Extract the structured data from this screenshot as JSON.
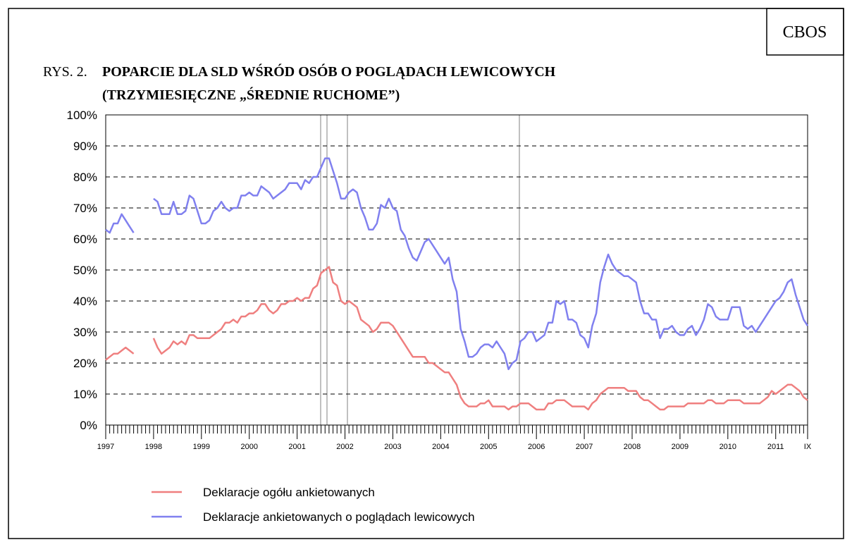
{
  "source": "CBOS",
  "chart_data": {
    "type": "line",
    "title_prefix": "RYS. 2.",
    "title": [
      "POPARCIE DLA SLD WŚRÓD OSÓB O POGLĄDACH LEWICOWYCH",
      "(TRZYMIESIĘCZNE „ŚREDNIE RUCHOME”)"
    ],
    "categories": [
      "1997",
      null,
      null,
      null,
      null,
      null,
      null,
      null,
      null,
      null,
      null,
      null,
      "1998",
      null,
      null,
      null,
      null,
      null,
      null,
      null,
      null,
      null,
      null,
      null,
      "1999",
      null,
      null,
      null,
      null,
      null,
      null,
      null,
      null,
      null,
      null,
      null,
      "2000",
      null,
      null,
      null,
      null,
      null,
      null,
      null,
      null,
      null,
      null,
      null,
      "2001",
      null,
      null,
      null,
      null,
      null,
      null,
      null,
      null,
      null,
      null,
      null,
      "2002",
      null,
      null,
      null,
      null,
      null,
      null,
      null,
      null,
      null,
      null,
      null,
      "2003",
      null,
      null,
      null,
      null,
      null,
      null,
      null,
      null,
      null,
      null,
      null,
      "2004",
      null,
      null,
      null,
      null,
      null,
      null,
      null,
      null,
      null,
      null,
      null,
      "2005",
      null,
      null,
      null,
      null,
      null,
      null,
      null,
      null,
      null,
      null,
      null,
      "2006",
      null,
      null,
      null,
      null,
      null,
      null,
      null,
      null,
      null,
      null,
      null,
      "2007",
      null,
      null,
      null,
      null,
      null,
      null,
      null,
      null,
      null,
      null,
      null,
      "2008",
      null,
      null,
      null,
      null,
      null,
      null,
      null,
      null,
      null,
      null,
      null,
      "2009",
      null,
      null,
      null,
      null,
      null,
      null,
      null,
      null,
      null,
      null,
      null,
      "2010",
      null,
      null,
      null,
      null,
      null,
      null,
      null,
      null,
      null,
      null,
      null,
      "2011",
      null,
      null,
      null,
      null,
      null,
      null,
      null,
      "IX"
    ],
    "series": [
      {
        "name": "Deklaracje ogółu ankietowanych",
        "color": "#ef7f7f",
        "values": [
          21,
          22,
          23,
          23,
          24,
          25,
          24,
          23,
          null,
          null,
          null,
          null,
          28,
          25,
          23,
          24,
          25,
          27,
          26,
          27,
          26,
          29,
          29,
          28,
          28,
          28,
          28,
          29,
          30,
          31,
          33,
          33,
          34,
          33,
          35,
          35,
          36,
          36,
          37,
          39,
          39,
          37,
          36,
          37,
          39,
          39,
          40,
          40,
          41,
          40,
          41,
          41,
          44,
          45,
          49,
          50,
          51,
          46,
          45,
          40,
          39,
          40,
          39,
          38,
          34,
          33,
          32,
          30,
          31,
          33,
          33,
          33,
          32,
          30,
          28,
          26,
          24,
          22,
          22,
          22,
          22,
          20,
          20,
          19,
          18,
          17,
          17,
          15,
          13,
          9,
          7,
          6,
          6,
          6,
          7,
          7,
          8,
          6,
          6,
          6,
          6,
          5,
          6,
          6,
          7,
          7,
          7,
          6,
          5,
          5,
          5,
          7,
          7,
          8,
          8,
          8,
          7,
          6,
          6,
          6,
          6,
          5,
          7,
          8,
          10,
          11,
          12,
          12,
          12,
          12,
          12,
          11,
          11,
          11,
          9,
          8,
          8,
          7,
          6,
          5,
          5,
          6,
          6,
          6,
          6,
          6,
          7,
          7,
          7,
          7,
          7,
          8,
          8,
          7,
          7,
          7,
          8,
          8,
          8,
          8,
          7,
          7,
          7,
          7,
          7,
          8,
          9,
          11,
          10,
          11,
          12,
          13,
          13,
          12,
          11,
          9,
          8
        ]
      },
      {
        "name": "Deklaracje ankietowanych o poglądach lewicowych",
        "color": "#8080ef",
        "values": [
          63,
          62,
          65,
          65,
          68,
          66,
          64,
          62,
          null,
          null,
          null,
          null,
          73,
          72,
          68,
          68,
          68,
          72,
          68,
          68,
          69,
          74,
          73,
          69,
          65,
          65,
          66,
          69,
          70,
          72,
          70,
          69,
          70,
          70,
          74,
          74,
          75,
          74,
          74,
          77,
          76,
          75,
          73,
          74,
          75,
          76,
          78,
          78,
          78,
          76,
          79,
          78,
          80,
          80,
          83,
          86,
          86,
          82,
          78,
          73,
          73,
          75,
          76,
          75,
          70,
          67,
          63,
          63,
          65,
          71,
          70,
          73,
          70,
          69,
          63,
          61,
          57,
          54,
          53,
          56,
          59,
          60,
          58,
          56,
          54,
          52,
          54,
          47,
          43,
          31,
          27,
          22,
          22,
          23,
          25,
          26,
          26,
          25,
          27,
          25,
          23,
          18,
          20,
          21,
          27,
          28,
          30,
          30,
          27,
          28,
          29,
          33,
          33,
          40,
          39,
          40,
          34,
          34,
          33,
          29,
          28,
          25,
          32,
          36,
          46,
          51,
          55,
          52,
          50,
          49,
          48,
          48,
          47,
          46,
          40,
          36,
          36,
          34,
          34,
          28,
          31,
          31,
          32,
          30,
          29,
          29,
          31,
          32,
          29,
          31,
          34,
          39,
          38,
          35,
          34,
          34,
          34,
          38,
          38,
          38,
          32,
          31,
          32,
          30,
          32,
          34,
          36,
          38,
          40,
          41,
          43,
          46,
          47,
          42,
          38,
          34,
          32
        ]
      }
    ],
    "ylim": [
      0,
      100
    ],
    "yticks": [
      {
        "value": 0,
        "label": "0%"
      },
      {
        "value": 10,
        "label": "10%"
      },
      {
        "value": 20,
        "label": "20%"
      },
      {
        "value": 30,
        "label": "30%"
      },
      {
        "value": 40,
        "label": "40%"
      },
      {
        "value": 50,
        "label": "50%"
      },
      {
        "value": 60,
        "label": "60%"
      },
      {
        "value": 70,
        "label": "70%"
      },
      {
        "value": 80,
        "label": "80%"
      },
      {
        "value": 90,
        "label": "90%"
      },
      {
        "value": 100,
        "label": "100%"
      }
    ],
    "grid": true
  }
}
